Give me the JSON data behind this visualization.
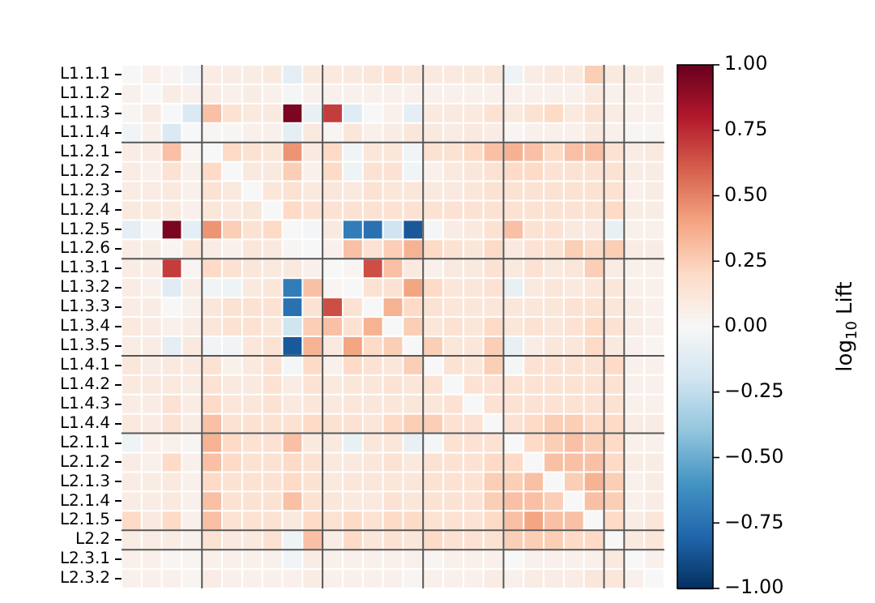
{
  "chart_data": {
    "type": "heatmap",
    "clabel": "log$_{10}$ Lift",
    "categories": [
      null,
      null,
      null,
      null,
      null,
      null,
      null,
      null,
      null,
      null,
      null,
      null,
      null,
      null,
      null,
      null,
      null,
      null,
      null,
      null,
      null,
      null,
      null,
      null,
      null,
      null,
      null
    ],
    "y_categories": [
      "L1.1.1",
      "L1.1.2",
      "L1.1.3",
      "L1.1.4",
      "L1.2.1",
      "L1.2.2",
      "L1.2.3",
      "L1.2.4",
      "L1.2.5",
      "L1.2.6",
      "L1.3.1",
      "L1.3.2",
      "L1.3.3",
      "L1.3.4",
      "L1.3.5",
      "L1.4.1",
      "L1.4.2",
      "L1.4.3",
      "L1.4.4",
      "L2.1.1",
      "L2.1.2",
      "L2.1.3",
      "L2.1.4",
      "L2.1.5",
      "L2.2",
      "L2.3.1",
      "L2.3.2"
    ],
    "cells": [
      [
        0,
        0.05,
        0.02,
        -0.03,
        0.08,
        0.08,
        0.08,
        0.1,
        -0.1,
        0.1,
        0.1,
        0.1,
        0.12,
        0.15,
        0.12,
        0.1,
        0.1,
        0.1,
        0.12,
        -0.05,
        0.08,
        0.1,
        0.1,
        0.25,
        0.1,
        0.08,
        0.08
      ],
      [
        0.05,
        0,
        0.08,
        0.05,
        0.08,
        0.05,
        0.08,
        0.05,
        -0.02,
        0.05,
        0.05,
        0.05,
        0.05,
        0.05,
        0.05,
        0.05,
        0.05,
        0.05,
        0.05,
        0.05,
        0.05,
        0.05,
        0.05,
        0.1,
        0.05,
        0.05,
        0.05
      ],
      [
        0.02,
        0.08,
        0,
        -0.15,
        0.3,
        0.15,
        0.1,
        0.1,
        0.95,
        -0.08,
        0.7,
        -0.12,
        0,
        0.05,
        -0.1,
        0.1,
        0.1,
        0.1,
        0.15,
        0.1,
        0.15,
        0.2,
        0.1,
        0.15,
        0.08,
        0.05,
        0.05
      ],
      [
        -0.03,
        0.05,
        -0.15,
        0,
        0.02,
        0.02,
        0.05,
        0.05,
        -0.1,
        0.1,
        0.02,
        0.12,
        0.05,
        0.08,
        0.12,
        0.1,
        0.08,
        0.1,
        0.08,
        0.02,
        0.05,
        0.05,
        0.05,
        0.1,
        0.05,
        0.02,
        0.02
      ],
      [
        0.08,
        0.08,
        0.3,
        0.02,
        0,
        0.2,
        0.15,
        0.12,
        0.45,
        0.1,
        0.2,
        -0.03,
        0.12,
        0.12,
        -0.03,
        0.15,
        0.15,
        0.2,
        0.3,
        0.35,
        0.3,
        0.2,
        0.3,
        0.3,
        0.15,
        0.08,
        0.1
      ],
      [
        0.08,
        0.05,
        0.15,
        0.05,
        0.2,
        0,
        0.1,
        0.1,
        0.25,
        0.05,
        0.2,
        -0.05,
        0.15,
        0.15,
        -0.03,
        0.05,
        0.1,
        0.12,
        0.15,
        0.2,
        0.2,
        0.15,
        0.15,
        0.15,
        0.15,
        0.08,
        0.08
      ],
      [
        0.08,
        0.08,
        0.1,
        0.05,
        0.15,
        0.1,
        0,
        0.12,
        0.15,
        0.1,
        0.12,
        0.1,
        0.15,
        0.12,
        0.12,
        0.1,
        0.1,
        0.12,
        0.15,
        0.15,
        0.15,
        0.15,
        0.15,
        0.15,
        0.15,
        0.05,
        0.08
      ],
      [
        0.1,
        0.1,
        0.1,
        0.05,
        0.12,
        0.1,
        0.12,
        0,
        0.2,
        0.15,
        0.15,
        0.15,
        0.15,
        0.15,
        0.15,
        0.15,
        0.15,
        0.15,
        0.15,
        0.15,
        0.15,
        0.15,
        0.15,
        0.15,
        0.2,
        0.08,
        0.08
      ],
      [
        -0.1,
        -0.02,
        0.95,
        -0.1,
        0.45,
        0.25,
        0.15,
        0.2,
        0,
        -0.02,
        0.1,
        -0.7,
        -0.75,
        -0.2,
        -0.85,
        -0.02,
        0.08,
        0.1,
        0.15,
        0.3,
        0.15,
        0.15,
        0.1,
        0.1,
        -0.08,
        0.05,
        0.05
      ],
      [
        0.08,
        0.08,
        0.02,
        0.12,
        0.08,
        0.05,
        0.12,
        0.1,
        0.02,
        0,
        0.05,
        0.3,
        0.15,
        0.25,
        0.35,
        0.2,
        0.15,
        0.12,
        0.2,
        0.1,
        0.15,
        0.15,
        0.25,
        0.2,
        0.25,
        0.08,
        0.08
      ],
      [
        0.08,
        0.08,
        0.7,
        0.02,
        0.2,
        0.15,
        0.12,
        0.1,
        0.1,
        0.05,
        0,
        0.02,
        0.65,
        0.3,
        0.1,
        0.05,
        0.1,
        0.1,
        0.15,
        0.1,
        0.15,
        0.1,
        0.12,
        0.25,
        0.08,
        0.05,
        0.05
      ],
      [
        0.08,
        0.05,
        -0.12,
        0.08,
        -0.03,
        -0.05,
        0.1,
        0.12,
        -0.7,
        0.3,
        0.02,
        0,
        0.15,
        0.15,
        0.4,
        0.2,
        0.12,
        0.12,
        0.15,
        -0.08,
        0.1,
        0.12,
        0.1,
        0.12,
        0.12,
        0.05,
        0.05
      ],
      [
        0.08,
        0.08,
        0,
        0.05,
        0.12,
        0.15,
        0.15,
        0.15,
        -0.75,
        0.15,
        0.65,
        0.15,
        0,
        0.35,
        0.2,
        0.15,
        0.12,
        0.12,
        0.12,
        0.12,
        0.12,
        0.12,
        0.15,
        0.15,
        0.12,
        0.08,
        0.05
      ],
      [
        0.1,
        0.08,
        0.05,
        0.08,
        0.12,
        0.15,
        0.15,
        0.12,
        -0.2,
        0.25,
        0.3,
        0.15,
        0.35,
        0,
        0.25,
        0.12,
        0.15,
        0.12,
        0.2,
        0.12,
        0.15,
        0.12,
        0.15,
        0.2,
        0.15,
        0.08,
        0.05
      ],
      [
        0.08,
        0.08,
        -0.1,
        0.1,
        -0.03,
        -0.03,
        0.12,
        0.15,
        -0.85,
        0.35,
        0.1,
        0.4,
        0.2,
        0.25,
        0,
        0.25,
        0.12,
        0.12,
        0.25,
        -0.08,
        0.08,
        0.12,
        0.12,
        0.2,
        0.1,
        0.05,
        0.02
      ],
      [
        0.12,
        0.08,
        0.1,
        0.1,
        0.15,
        0.05,
        0.1,
        0.15,
        -0.02,
        0.2,
        0.05,
        0.2,
        0.15,
        0.12,
        0.25,
        0,
        0.15,
        0.12,
        0.25,
        -0.02,
        0.15,
        0.15,
        0.15,
        0.15,
        0.2,
        0.05,
        0.05
      ],
      [
        0.1,
        0.1,
        0.1,
        0.08,
        0.15,
        0.1,
        0.1,
        0.15,
        0.08,
        0.15,
        0.1,
        0.12,
        0.12,
        0.15,
        0.12,
        0.15,
        0,
        0.15,
        0.15,
        0.15,
        0.15,
        0.15,
        0.15,
        0.15,
        0.15,
        0.05,
        0.05
      ],
      [
        0.08,
        0.08,
        0.15,
        0.08,
        0.2,
        0.12,
        0.12,
        0.15,
        0.1,
        0.12,
        0.1,
        0.12,
        0.12,
        0.12,
        0.12,
        0.12,
        0.15,
        0,
        0.15,
        0.15,
        0.15,
        0.15,
        0.15,
        0.15,
        0.15,
        0.05,
        0.05
      ],
      [
        0.1,
        0.08,
        0.15,
        0.08,
        0.3,
        0.15,
        0.15,
        0.15,
        0.15,
        0.2,
        0.15,
        0.15,
        0.12,
        0.2,
        0.25,
        0.25,
        0.15,
        0.15,
        0,
        0.15,
        0.2,
        0.25,
        0.25,
        0.2,
        0.2,
        0.08,
        0.08
      ],
      [
        -0.05,
        0.05,
        0.05,
        0.02,
        0.35,
        0.2,
        0.15,
        0.15,
        0.3,
        0.1,
        0.1,
        -0.08,
        0.12,
        0.12,
        -0.08,
        -0.02,
        0.15,
        0.15,
        0.15,
        0,
        0.2,
        0.25,
        0.3,
        0.25,
        0.2,
        0.05,
        0.05
      ],
      [
        0.08,
        0.05,
        0.2,
        0.05,
        0.3,
        0.2,
        0.15,
        0.15,
        0.2,
        0.15,
        0.1,
        0.1,
        0.12,
        0.15,
        0.1,
        0.15,
        0.15,
        0.15,
        0.2,
        0.2,
        0,
        0.3,
        0.3,
        0.3,
        0.2,
        0.08,
        0.08
      ],
      [
        0.08,
        0.08,
        0.1,
        0.05,
        0.2,
        0.15,
        0.15,
        0.15,
        0.2,
        0.15,
        0.1,
        0.12,
        0.12,
        0.12,
        0.12,
        0.15,
        0.15,
        0.15,
        0.25,
        0.25,
        0.3,
        0,
        0.25,
        0.35,
        0.25,
        0.05,
        0.08
      ],
      [
        0.08,
        0.08,
        0.1,
        0.05,
        0.3,
        0.15,
        0.15,
        0.15,
        0.3,
        0.15,
        0.12,
        0.1,
        0.1,
        0.15,
        0.12,
        0.15,
        0.15,
        0.15,
        0.25,
        0.3,
        0.3,
        0.25,
        0,
        0.3,
        0.25,
        0.05,
        0.08
      ],
      [
        0.2,
        0.1,
        0.2,
        0.05,
        0.3,
        0.15,
        0.15,
        0.15,
        0.1,
        0.2,
        0.15,
        0.2,
        0.15,
        0.2,
        0.2,
        0.15,
        0.15,
        0.15,
        0.2,
        0.3,
        0.4,
        0.3,
        0.3,
        0,
        0.2,
        0.08,
        0.12
      ],
      [
        0.08,
        0.08,
        0.08,
        0.05,
        0.15,
        0.1,
        0.1,
        0.15,
        -0.05,
        0.3,
        0.08,
        0.2,
        0.12,
        0.15,
        0.12,
        0.2,
        0.15,
        0.15,
        0.15,
        0.25,
        0.25,
        0.25,
        0.2,
        0.2,
        0,
        0.1,
        0.12
      ],
      [
        0.05,
        0.05,
        0.02,
        0.02,
        0.05,
        0.05,
        0.05,
        0.05,
        -0.03,
        0.08,
        0.05,
        0.05,
        0.05,
        0.05,
        0.05,
        0.02,
        0.05,
        0.05,
        0.05,
        0,
        0.05,
        0.05,
        0.05,
        0.05,
        0.1,
        0,
        0.05
      ],
      [
        0.05,
        0.05,
        0.05,
        0.02,
        0.08,
        0.05,
        0.05,
        0.05,
        0.05,
        0.08,
        0.05,
        0.05,
        0.05,
        0.05,
        0.02,
        0.05,
        0.05,
        0.05,
        0.08,
        0.05,
        0.08,
        0.08,
        0.08,
        0.12,
        0.12,
        0.05,
        0
      ]
    ],
    "clim": [
      -1,
      1
    ],
    "cticks": [
      {
        "value": -1,
        "label": "−1.00"
      },
      {
        "value": -0.75,
        "label": "−0.75"
      },
      {
        "value": -0.5,
        "label": "−0.50"
      },
      {
        "value": -0.25,
        "label": "−0.25"
      },
      {
        "value": 0,
        "label": "0.00"
      },
      {
        "value": 0.25,
        "label": "0.25"
      },
      {
        "value": 0.5,
        "label": "0.50"
      },
      {
        "value": 0.75,
        "label": "0.75"
      },
      {
        "value": 1,
        "label": "1.00"
      }
    ]
  }
}
